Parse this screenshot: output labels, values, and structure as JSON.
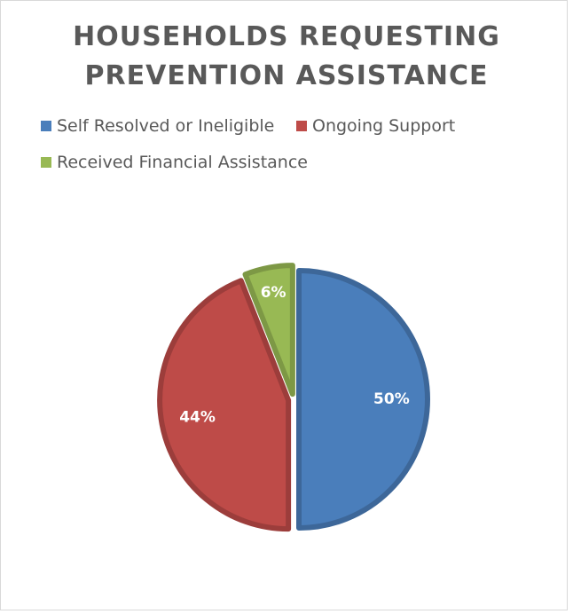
{
  "chart_data": {
    "type": "pie",
    "title_lines": [
      "HOUSEHOLDS REQUESTING",
      "PREVENTION ASSISTANCE"
    ],
    "legend_position": "top",
    "slices": [
      {
        "name": "Self Resolved or Ineligible",
        "value": 50,
        "label": "50%",
        "color": "#4a7ebb"
      },
      {
        "name": "Ongoing Support",
        "value": 44,
        "label": "44%",
        "color": "#be4b48"
      },
      {
        "name": "Received Financial Assistance",
        "value": 6,
        "label": "6%",
        "color": "#98b954"
      }
    ]
  }
}
